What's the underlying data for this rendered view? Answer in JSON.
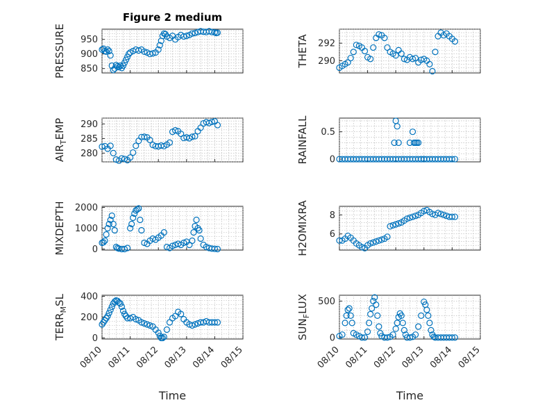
{
  "figure": {
    "title": "Figure 2 medium"
  },
  "colors": {
    "marker": "#0072bd",
    "axis": "#262626",
    "grid": "#b0b0b0"
  },
  "chart_data": [
    {
      "type": "scatter",
      "ylabel": "PRESSURE",
      "xlabel": "",
      "title": "Figure 2 medium",
      "x_range": [
        "08/10",
        "08/15"
      ],
      "ylim": [
        835,
        985
      ],
      "yticks": [
        850,
        900,
        950
      ],
      "grid": true,
      "marker": "circle",
      "x": [
        0,
        0.05,
        0.1,
        0.15,
        0.2,
        0.25,
        0.3,
        0.35,
        0.4,
        0.45,
        0.5,
        0.55,
        0.6,
        0.65,
        0.7,
        0.75,
        0.8,
        0.85,
        0.9,
        0.95,
        1,
        1.1,
        1.2,
        1.3,
        1.4,
        1.5,
        1.6,
        1.7,
        1.8,
        1.9,
        2,
        2.05,
        2.1,
        2.15,
        2.2,
        2.25,
        2.3,
        2.4,
        2.5,
        2.6,
        2.7,
        2.8,
        2.9,
        3,
        3.1,
        3.2,
        3.3,
        3.4,
        3.5,
        3.6,
        3.7,
        3.8,
        3.9,
        4,
        4.05,
        4.1
      ],
      "y": [
        915,
        918,
        910,
        908,
        915,
        910,
        895,
        860,
        845,
        850,
        862,
        858,
        855,
        860,
        852,
        860,
        870,
        880,
        890,
        900,
        905,
        910,
        915,
        912,
        915,
        908,
        905,
        900,
        902,
        905,
        915,
        930,
        945,
        962,
        970,
        968,
        960,
        955,
        962,
        950,
        958,
        965,
        960,
        962,
        965,
        970,
        972,
        975,
        978,
        976,
        975,
        978,
        975,
        974,
        972,
        973
      ]
    },
    {
      "type": "scatter",
      "ylabel": "THETA",
      "xlabel": "",
      "x_range": [
        "08/10",
        "08/15"
      ],
      "ylim": [
        288.6,
        293.6
      ],
      "yticks": [
        290,
        292
      ],
      "grid": true,
      "marker": "circle",
      "x": [
        0,
        0.1,
        0.2,
        0.3,
        0.4,
        0.5,
        0.6,
        0.7,
        0.8,
        0.9,
        1,
        1.1,
        1.2,
        1.3,
        1.4,
        1.5,
        1.6,
        1.7,
        1.8,
        1.9,
        2,
        2.1,
        2.2,
        2.3,
        2.4,
        2.5,
        2.6,
        2.7,
        2.8,
        2.9,
        3,
        3.1,
        3.2,
        3.3,
        3.4,
        3.5,
        3.6,
        3.7,
        3.8,
        3.9,
        4,
        4.1
      ],
      "y": [
        289.2,
        289.4,
        289.6,
        289.8,
        290.3,
        291,
        291.8,
        291.7,
        291.5,
        291.1,
        290.4,
        290.2,
        291.5,
        292.6,
        293,
        292.9,
        292.6,
        291.5,
        291,
        290.8,
        290.6,
        291.2,
        290.8,
        290.2,
        290.1,
        290.4,
        290.2,
        290.3,
        289.8,
        290.1,
        290.2,
        290,
        289.6,
        288.8,
        291,
        292.8,
        293.2,
        292.9,
        293.1,
        292.8,
        292.5,
        292.2
      ]
    },
    {
      "type": "scatter",
      "ylabel": "AIR_TEMP",
      "xlabel": "",
      "x_range": [
        "08/10",
        "08/15"
      ],
      "ylim": [
        277,
        292
      ],
      "yticks": [
        280,
        285,
        290
      ],
      "grid": true,
      "marker": "circle",
      "x": [
        0,
        0.1,
        0.2,
        0.3,
        0.4,
        0.5,
        0.6,
        0.7,
        0.8,
        0.9,
        1,
        1.1,
        1.2,
        1.3,
        1.4,
        1.5,
        1.6,
        1.7,
        1.8,
        1.9,
        2,
        2.1,
        2.2,
        2.3,
        2.4,
        2.5,
        2.6,
        2.7,
        2.8,
        2.9,
        3,
        3.1,
        3.2,
        3.3,
        3.4,
        3.5,
        3.6,
        3.7,
        3.8,
        3.9,
        4,
        4.1
      ],
      "y": [
        282.2,
        282.4,
        281.5,
        282.5,
        280,
        277.8,
        277.4,
        278.2,
        278,
        277.6,
        278.5,
        280.2,
        282.5,
        284.2,
        285.5,
        285.6,
        285.4,
        284.5,
        282.8,
        282.4,
        282.3,
        282.6,
        282.4,
        282.9,
        283.6,
        287.3,
        287.8,
        287.5,
        286.6,
        285.2,
        285.4,
        285.1,
        285.6,
        285.8,
        287.5,
        288.7,
        290.2,
        290.6,
        290.3,
        290.7,
        290.9,
        289.6
      ]
    },
    {
      "type": "scatter",
      "ylabel": "RAINFALL",
      "xlabel": "",
      "x_range": [
        "08/10",
        "08/15"
      ],
      "ylim": [
        -0.05,
        0.75
      ],
      "yticks": [
        0,
        0.5
      ],
      "grid": true,
      "marker": "circle",
      "x": [
        0,
        0.1,
        0.2,
        0.3,
        0.4,
        0.5,
        0.6,
        0.7,
        0.8,
        0.9,
        1,
        1.1,
        1.2,
        1.3,
        1.4,
        1.5,
        1.6,
        1.7,
        1.8,
        1.9,
        2,
        2.1,
        2.2,
        2.3,
        2.4,
        2.5,
        2.6,
        2.7,
        2.8,
        2.9,
        3,
        3.1,
        3.2,
        3.3,
        3.4,
        3.5,
        3.6,
        3.7,
        3.8,
        3.9,
        4,
        4.1,
        1.95,
        2.0,
        2.05,
        2.1,
        2.5,
        2.6,
        2.65,
        2.7,
        2.75,
        2.8,
        2.9,
        3.0
      ],
      "y": [
        0,
        0,
        0,
        0,
        0,
        0,
        0,
        0,
        0,
        0,
        0,
        0,
        0,
        0,
        0,
        0,
        0,
        0,
        0,
        0,
        0,
        0,
        0,
        0,
        0,
        0,
        0,
        0,
        0,
        0,
        0,
        0,
        0,
        0,
        0,
        0,
        0,
        0,
        0,
        0,
        0,
        0,
        0.3,
        0.7,
        0.6,
        0.3,
        0.3,
        0.5,
        0.3,
        0.3,
        0.3,
        0.3,
        0,
        0
      ]
    },
    {
      "type": "scatter",
      "ylabel": "MIXDEPTH",
      "xlabel": "",
      "x_range": [
        "08/10",
        "08/15"
      ],
      "ylim": [
        -50,
        2050
      ],
      "yticks": [
        0,
        1000,
        2000
      ],
      "grid": true,
      "marker": "circle",
      "x": [
        0,
        0.05,
        0.1,
        0.15,
        0.2,
        0.25,
        0.3,
        0.35,
        0.4,
        0.45,
        0.5,
        0.55,
        0.6,
        0.7,
        0.8,
        0.9,
        1,
        1.05,
        1.1,
        1.15,
        1.2,
        1.25,
        1.3,
        1.35,
        1.4,
        1.5,
        1.6,
        1.7,
        1.8,
        1.9,
        2,
        2.1,
        2.2,
        2.3,
        2.4,
        2.5,
        2.6,
        2.7,
        2.8,
        2.9,
        3,
        3.1,
        3.2,
        3.25,
        3.3,
        3.35,
        3.4,
        3.45,
        3.5,
        3.6,
        3.7,
        3.8,
        3.9,
        4,
        4.1
      ],
      "y": [
        300,
        320,
        400,
        700,
        1000,
        1200,
        1400,
        1600,
        1200,
        900,
        100,
        50,
        20,
        0,
        0,
        50,
        1000,
        1200,
        1500,
        1700,
        1850,
        1900,
        1950,
        1400,
        900,
        300,
        250,
        400,
        500,
        450,
        550,
        650,
        800,
        100,
        50,
        150,
        200,
        250,
        200,
        300,
        350,
        200,
        400,
        800,
        1100,
        1400,
        1000,
        900,
        500,
        200,
        100,
        50,
        20,
        10,
        0
      ]
    },
    {
      "type": "scatter",
      "ylabel": "H2OMIXRA",
      "xlabel": "",
      "x_range": [
        "08/10",
        "08/15"
      ],
      "ylim": [
        4.3,
        8.9
      ],
      "yticks": [
        6,
        8
      ],
      "grid": true,
      "marker": "circle",
      "x": [
        0,
        0.1,
        0.2,
        0.3,
        0.4,
        0.5,
        0.6,
        0.7,
        0.8,
        0.9,
        1,
        1.1,
        1.2,
        1.3,
        1.4,
        1.5,
        1.6,
        1.7,
        1.8,
        1.9,
        2,
        2.1,
        2.2,
        2.3,
        2.4,
        2.5,
        2.6,
        2.7,
        2.8,
        2.9,
        3,
        3.1,
        3.2,
        3.3,
        3.4,
        3.5,
        3.6,
        3.7,
        3.8,
        3.9,
        4,
        4.1
      ],
      "y": [
        5.3,
        5.3,
        5.5,
        5.8,
        5.6,
        5.3,
        5,
        4.8,
        4.6,
        4.5,
        4.8,
        5,
        5.1,
        5.2,
        5.3,
        5.4,
        5.5,
        5.7,
        6.8,
        6.9,
        7,
        7.1,
        7.2,
        7.4,
        7.6,
        7.7,
        7.8,
        7.9,
        8,
        8.2,
        8.4,
        8.5,
        8.3,
        8.1,
        8,
        8.2,
        8.1,
        8,
        7.9,
        7.8,
        7.8,
        7.8
      ]
    },
    {
      "type": "scatter",
      "ylabel": "TERR_MSL",
      "xlabel": "Time",
      "x_range": [
        "08/10",
        "08/15"
      ],
      "xticks": [
        "08/10",
        "08/11",
        "08/12",
        "08/13",
        "08/14",
        "08/15"
      ],
      "ylim": [
        -10,
        410
      ],
      "yticks": [
        0,
        200,
        400
      ],
      "grid": true,
      "marker": "circle",
      "x": [
        0,
        0.05,
        0.1,
        0.15,
        0.2,
        0.25,
        0.3,
        0.35,
        0.4,
        0.45,
        0.5,
        0.55,
        0.6,
        0.65,
        0.7,
        0.75,
        0.8,
        0.85,
        0.9,
        1,
        1.1,
        1.2,
        1.3,
        1.4,
        1.5,
        1.6,
        1.7,
        1.8,
        1.9,
        2,
        2.05,
        2.1,
        2.15,
        2.2,
        2.3,
        2.4,
        2.5,
        2.6,
        2.7,
        2.8,
        2.9,
        3,
        3.1,
        3.2,
        3.3,
        3.4,
        3.5,
        3.6,
        3.7,
        3.8,
        3.9,
        4,
        4.1
      ],
      "y": [
        130,
        150,
        170,
        190,
        210,
        240,
        270,
        300,
        330,
        350,
        360,
        355,
        340,
        330,
        300,
        260,
        230,
        210,
        190,
        190,
        200,
        180,
        170,
        150,
        140,
        130,
        120,
        110,
        80,
        50,
        20,
        0,
        0,
        10,
        80,
        150,
        190,
        210,
        250,
        230,
        180,
        150,
        130,
        120,
        130,
        140,
        150,
        150,
        160,
        150,
        150,
        150,
        150
      ]
    },
    {
      "type": "scatter",
      "ylabel": "SUN_FLUX",
      "xlabel": "Time",
      "x_range": [
        "08/10",
        "08/15"
      ],
      "xticks": [
        "08/10",
        "08/11",
        "08/12",
        "08/13",
        "08/14",
        "08/15"
      ],
      "ylim": [
        -20,
        580
      ],
      "yticks": [
        0,
        500
      ],
      "grid": true,
      "marker": "circle",
      "x": [
        0,
        0.1,
        0.2,
        0.25,
        0.3,
        0.35,
        0.4,
        0.45,
        0.5,
        0.6,
        0.7,
        0.8,
        0.9,
        1,
        1.05,
        1.1,
        1.15,
        1.2,
        1.25,
        1.3,
        1.35,
        1.4,
        1.45,
        1.5,
        1.6,
        1.7,
        1.8,
        1.9,
        2,
        2.05,
        2.1,
        2.15,
        2.2,
        2.25,
        2.3,
        2.35,
        2.4,
        2.5,
        2.6,
        2.7,
        2.8,
        2.9,
        3,
        3.05,
        3.1,
        3.15,
        3.2,
        3.25,
        3.3,
        3.35,
        3.4,
        3.5,
        3.6,
        3.7,
        3.8,
        3.9,
        4,
        4.1
      ],
      "y": [
        20,
        40,
        200,
        300,
        380,
        400,
        300,
        200,
        60,
        40,
        20,
        0,
        0,
        80,
        200,
        320,
        400,
        500,
        550,
        450,
        300,
        150,
        60,
        20,
        0,
        0,
        10,
        40,
        120,
        200,
        280,
        330,
        300,
        200,
        100,
        40,
        0,
        0,
        10,
        40,
        150,
        300,
        490,
        450,
        380,
        300,
        200,
        100,
        40,
        10,
        0,
        0,
        0,
        0,
        0,
        0,
        0,
        0
      ]
    }
  ]
}
